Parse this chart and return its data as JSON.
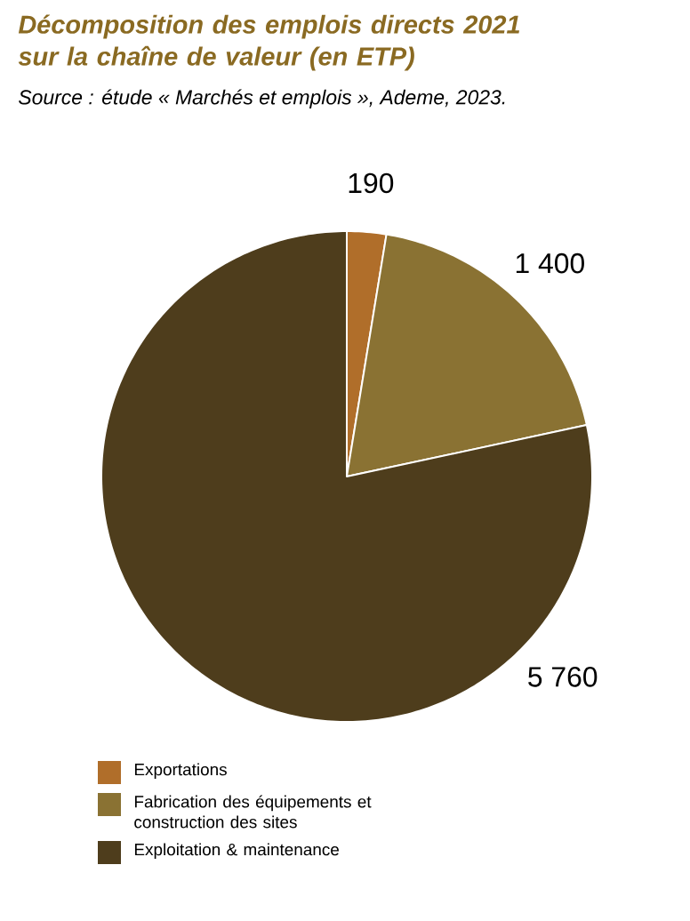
{
  "chart_data": {
    "type": "pie",
    "title": "Décomposition des emplois directs 2021 sur la chaîne de valeur (en ETP)",
    "annotations": [
      "Source : étude « Marchés et emplois », Ademe, 2023."
    ],
    "categories": [
      "Exportations",
      "Fabrication des équipements et construction des sites",
      "Exploitation & maintenance"
    ],
    "values": [
      190,
      1400,
      5760
    ],
    "value_labels": [
      "190",
      "1 400",
      "5 760"
    ],
    "colors": [
      "#b06e2a",
      "#8a7233",
      "#4e3d1c"
    ],
    "legend": "bottom left"
  }
}
